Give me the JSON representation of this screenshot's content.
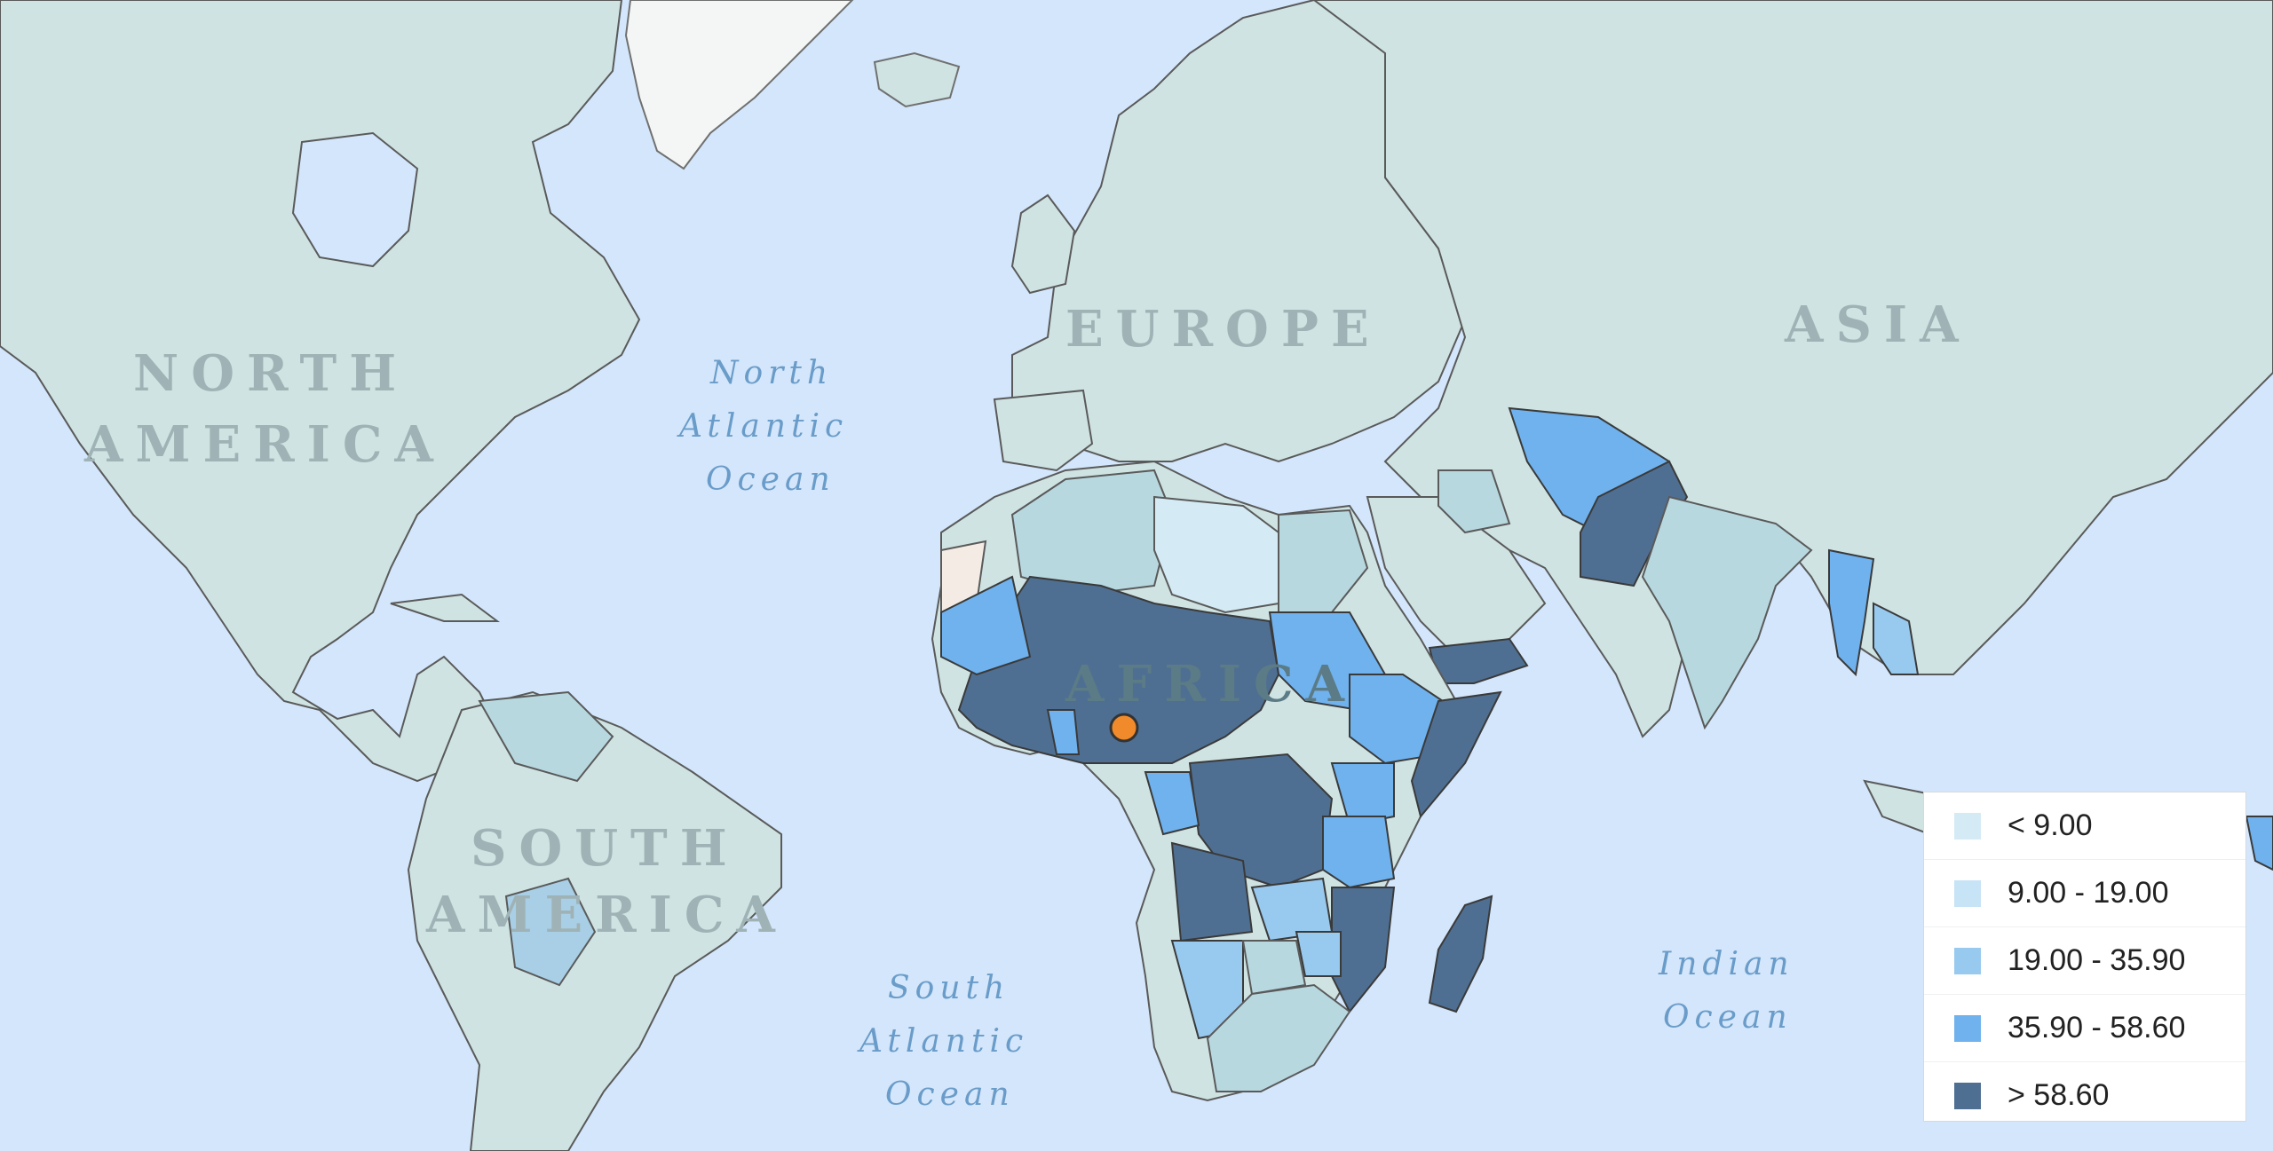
{
  "map": {
    "continents": {
      "north_america": [
        "NORTH",
        "AMERICA"
      ],
      "south_america": [
        "SOUTH",
        "AMERICA"
      ],
      "europe": "EUROPE",
      "asia": "ASIA",
      "africa": "AFRICA"
    },
    "oceans": {
      "north_atlantic": [
        "North",
        "Atlantic",
        "Ocean"
      ],
      "south_atlantic": [
        "South",
        "Atlantic",
        "Ocean"
      ],
      "indian": [
        "Indian",
        "Ocean"
      ]
    },
    "colors": {
      "water": "#d3e6fb",
      "land": "#cfe3e2",
      "border": "#4a4a4a",
      "marker": "#f08a2a"
    }
  },
  "legend": {
    "items": [
      {
        "label": "< 9.00",
        "color": "#d4ebf5"
      },
      {
        "label": "9.00 - 19.00",
        "color": "#c7e3f6"
      },
      {
        "label": "19.00 - 35.90",
        "color": "#98c9ee"
      },
      {
        "label": "35.90 - 58.60",
        "color": "#6fb2ee"
      },
      {
        "label": "> 58.60",
        "color": "#4f6f92"
      }
    ]
  }
}
